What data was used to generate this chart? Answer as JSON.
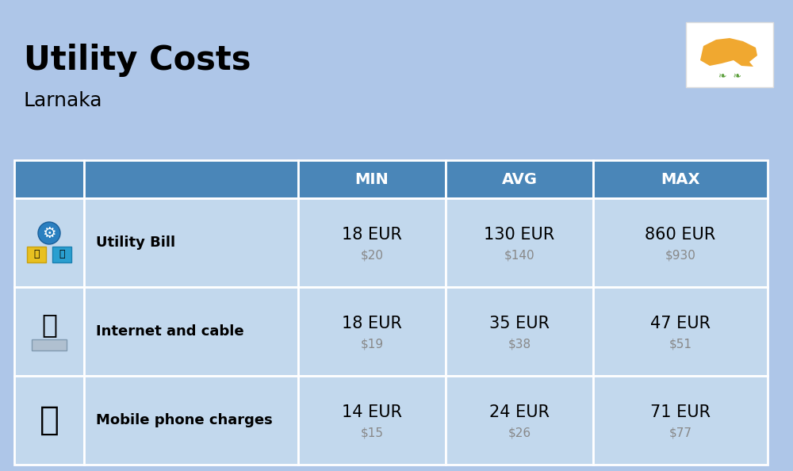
{
  "title": "Utility Costs",
  "subtitle": "Larnaka",
  "bg_color": "#aec6e8",
  "header_color": "#4a86b8",
  "header_text_color": "#ffffff",
  "row_bg_color": "#c2d8ed",
  "border_color": "#ffffff",
  "col_headers": [
    "MIN",
    "AVG",
    "MAX"
  ],
  "rows": [
    {
      "label": "Utility Bill",
      "min_eur": "18 EUR",
      "min_usd": "$20",
      "avg_eur": "130 EUR",
      "avg_usd": "$140",
      "max_eur": "860 EUR",
      "max_usd": "$930"
    },
    {
      "label": "Internet and cable",
      "min_eur": "18 EUR",
      "min_usd": "$19",
      "avg_eur": "35 EUR",
      "avg_usd": "$38",
      "max_eur": "47 EUR",
      "max_usd": "$51"
    },
    {
      "label": "Mobile phone charges",
      "min_eur": "14 EUR",
      "min_usd": "$15",
      "avg_eur": "24 EUR",
      "avg_usd": "$26",
      "max_eur": "71 EUR",
      "max_usd": "$77"
    }
  ],
  "title_fontsize": 30,
  "subtitle_fontsize": 18,
  "header_fontsize": 14,
  "label_fontsize": 13,
  "value_fontsize": 15,
  "usd_fontsize": 11,
  "usd_color": "#888888",
  "flag_color": "#f0a830",
  "flag_green": "#5a9e3a"
}
